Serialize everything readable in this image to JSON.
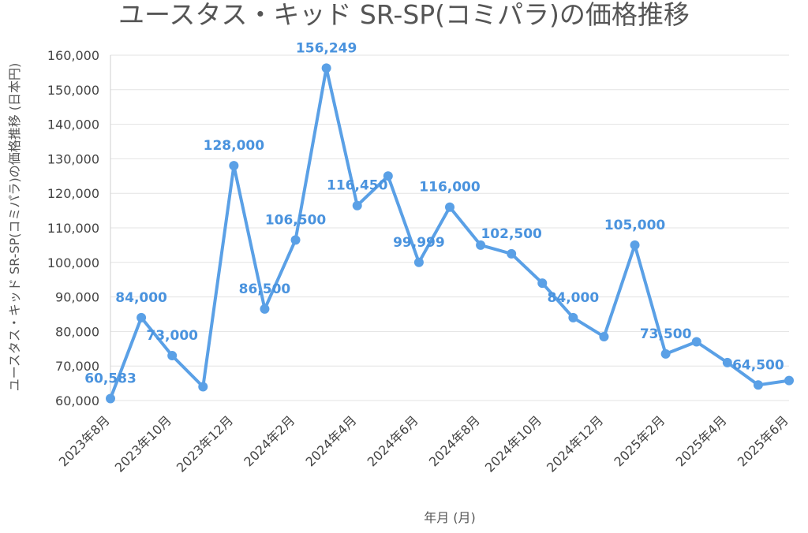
{
  "chart_data": {
    "type": "line",
    "title": "ユースタス・キッド SR-SP(コミパラ)の価格推移",
    "xlabel": "年月 (月)",
    "ylabel": "ユースタス・キッド SR-SP(コミパラ)の価格推移 (日本円)",
    "ylim": [
      60000,
      160000
    ],
    "yticks": [
      60000,
      70000,
      80000,
      90000,
      100000,
      110000,
      120000,
      130000,
      140000,
      150000,
      160000
    ],
    "ytick_labels": [
      "60,000",
      "70,000",
      "80,000",
      "90,000",
      "100,000",
      "110,000",
      "120,000",
      "130,000",
      "140,000",
      "150,000",
      "160,000"
    ],
    "xtick_labels": [
      "2023年8月",
      "2023年10月",
      "2023年12月",
      "2024年2月",
      "2024年4月",
      "2024年6月",
      "2024年8月",
      "2024年10月",
      "2024年12月",
      "2025年2月",
      "2025年4月",
      "2025年6月"
    ],
    "x": [
      "2023年8月",
      "2023年9月",
      "2023年10月",
      "2023年11月",
      "2023年12月",
      "2024年1月",
      "2024年2月",
      "2024年3月",
      "2024年4月",
      "2024年5月",
      "2024年6月",
      "2024年7月",
      "2024年8月",
      "2024年9月",
      "2024年10月",
      "2024年11月",
      "2024年12月",
      "2025年1月",
      "2025年2月",
      "2025年3月",
      "2025年4月",
      "2025年5月",
      "2025年6月"
    ],
    "series": [
      {
        "values": [
          60583,
          84000,
          73000,
          64000,
          128000,
          86500,
          106500,
          156249,
          116450,
          125000,
          99999,
          116000,
          105000,
          102500,
          94000,
          84000,
          78500,
          105000,
          73500,
          77000,
          71000,
          64500,
          65800
        ]
      }
    ],
    "data_labels": [
      {
        "index": 0,
        "text": "60,583"
      },
      {
        "index": 1,
        "text": "84,000"
      },
      {
        "index": 2,
        "text": "73,000"
      },
      {
        "index": 4,
        "text": "128,000"
      },
      {
        "index": 5,
        "text": "86,500"
      },
      {
        "index": 6,
        "text": "106,500"
      },
      {
        "index": 7,
        "text": "156,249"
      },
      {
        "index": 8,
        "text": "116,450"
      },
      {
        "index": 10,
        "text": "99,999"
      },
      {
        "index": 11,
        "text": "116,000"
      },
      {
        "index": 13,
        "text": "102,500"
      },
      {
        "index": 15,
        "text": "84,000"
      },
      {
        "index": 17,
        "text": "105,000"
      },
      {
        "index": 18,
        "text": "73,500"
      },
      {
        "index": 21,
        "text": "64,500"
      }
    ],
    "grid": true,
    "colors": {
      "line": "#5aa0e6",
      "label": "#4a93de"
    }
  }
}
